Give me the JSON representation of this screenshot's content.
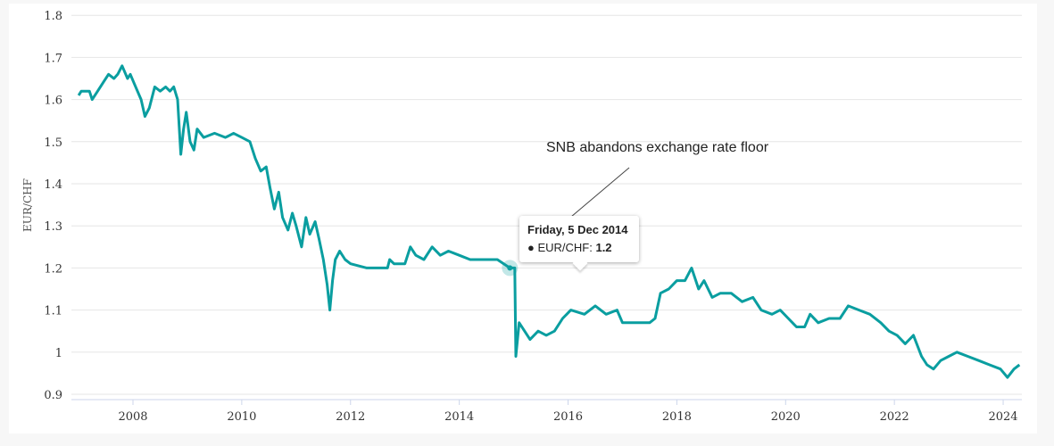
{
  "chart_data": {
    "type": "line",
    "title": "",
    "xlabel": "",
    "ylabel": "EUR/CHF",
    "xlim": [
      2006.85,
      2024.35
    ],
    "ylim": [
      0.9,
      1.8
    ],
    "xticks": [
      "2008",
      "2010",
      "2012",
      "2014",
      "2016",
      "2018",
      "2020",
      "2022",
      "2024"
    ],
    "yticks": [
      "0.9",
      "1",
      "1.1",
      "1.2",
      "1.3",
      "1.4",
      "1.5",
      "1.6",
      "1.7",
      "1.8"
    ],
    "grid": true,
    "color": "#0a9ea0",
    "series": [
      {
        "name": "EUR/CHF",
        "points": [
          [
            2007.0,
            1.61
          ],
          [
            2007.05,
            1.62
          ],
          [
            2007.2,
            1.62
          ],
          [
            2007.25,
            1.6
          ],
          [
            2007.35,
            1.62
          ],
          [
            2007.45,
            1.64
          ],
          [
            2007.55,
            1.66
          ],
          [
            2007.65,
            1.65
          ],
          [
            2007.72,
            1.66
          ],
          [
            2007.8,
            1.68
          ],
          [
            2007.9,
            1.65
          ],
          [
            2007.95,
            1.66
          ],
          [
            2008.05,
            1.63
          ],
          [
            2008.15,
            1.6
          ],
          [
            2008.22,
            1.56
          ],
          [
            2008.3,
            1.58
          ],
          [
            2008.4,
            1.63
          ],
          [
            2008.5,
            1.62
          ],
          [
            2008.6,
            1.63
          ],
          [
            2008.68,
            1.62
          ],
          [
            2008.75,
            1.63
          ],
          [
            2008.82,
            1.6
          ],
          [
            2008.88,
            1.47
          ],
          [
            2008.93,
            1.53
          ],
          [
            2008.98,
            1.57
          ],
          [
            2009.05,
            1.5
          ],
          [
            2009.12,
            1.48
          ],
          [
            2009.18,
            1.53
          ],
          [
            2009.3,
            1.51
          ],
          [
            2009.5,
            1.52
          ],
          [
            2009.7,
            1.51
          ],
          [
            2009.85,
            1.52
          ],
          [
            2010.0,
            1.51
          ],
          [
            2010.15,
            1.5
          ],
          [
            2010.25,
            1.46
          ],
          [
            2010.35,
            1.43
          ],
          [
            2010.45,
            1.44
          ],
          [
            2010.52,
            1.39
          ],
          [
            2010.6,
            1.34
          ],
          [
            2010.68,
            1.38
          ],
          [
            2010.75,
            1.32
          ],
          [
            2010.85,
            1.29
          ],
          [
            2010.93,
            1.33
          ],
          [
            2011.0,
            1.3
          ],
          [
            2011.1,
            1.25
          ],
          [
            2011.18,
            1.32
          ],
          [
            2011.25,
            1.28
          ],
          [
            2011.35,
            1.31
          ],
          [
            2011.42,
            1.27
          ],
          [
            2011.5,
            1.22
          ],
          [
            2011.57,
            1.16
          ],
          [
            2011.62,
            1.1
          ],
          [
            2011.67,
            1.17
          ],
          [
            2011.72,
            1.22
          ],
          [
            2011.8,
            1.24
          ],
          [
            2011.9,
            1.22
          ],
          [
            2012.0,
            1.21
          ],
          [
            2012.3,
            1.2
          ],
          [
            2012.68,
            1.2
          ],
          [
            2012.72,
            1.22
          ],
          [
            2012.8,
            1.21
          ],
          [
            2013.0,
            1.21
          ],
          [
            2013.1,
            1.25
          ],
          [
            2013.2,
            1.23
          ],
          [
            2013.35,
            1.22
          ],
          [
            2013.5,
            1.25
          ],
          [
            2013.65,
            1.23
          ],
          [
            2013.8,
            1.24
          ],
          [
            2014.0,
            1.23
          ],
          [
            2014.2,
            1.22
          ],
          [
            2014.5,
            1.22
          ],
          [
            2014.7,
            1.22
          ],
          [
            2014.93,
            1.2
          ],
          [
            2015.02,
            1.2
          ],
          [
            2015.04,
            0.99
          ],
          [
            2015.1,
            1.07
          ],
          [
            2015.2,
            1.05
          ],
          [
            2015.3,
            1.03
          ],
          [
            2015.45,
            1.05
          ],
          [
            2015.6,
            1.04
          ],
          [
            2015.75,
            1.05
          ],
          [
            2015.9,
            1.08
          ],
          [
            2016.05,
            1.1
          ],
          [
            2016.3,
            1.09
          ],
          [
            2016.5,
            1.11
          ],
          [
            2016.7,
            1.09
          ],
          [
            2016.9,
            1.1
          ],
          [
            2017.0,
            1.07
          ],
          [
            2017.3,
            1.07
          ],
          [
            2017.5,
            1.07
          ],
          [
            2017.6,
            1.08
          ],
          [
            2017.7,
            1.14
          ],
          [
            2017.85,
            1.15
          ],
          [
            2018.0,
            1.17
          ],
          [
            2018.15,
            1.17
          ],
          [
            2018.27,
            1.2
          ],
          [
            2018.4,
            1.15
          ],
          [
            2018.5,
            1.17
          ],
          [
            2018.65,
            1.13
          ],
          [
            2018.8,
            1.14
          ],
          [
            2019.0,
            1.14
          ],
          [
            2019.2,
            1.12
          ],
          [
            2019.4,
            1.13
          ],
          [
            2019.55,
            1.1
          ],
          [
            2019.75,
            1.09
          ],
          [
            2019.9,
            1.1
          ],
          [
            2020.05,
            1.08
          ],
          [
            2020.2,
            1.06
          ],
          [
            2020.35,
            1.06
          ],
          [
            2020.45,
            1.09
          ],
          [
            2020.6,
            1.07
          ],
          [
            2020.8,
            1.08
          ],
          [
            2021.0,
            1.08
          ],
          [
            2021.15,
            1.11
          ],
          [
            2021.35,
            1.1
          ],
          [
            2021.55,
            1.09
          ],
          [
            2021.75,
            1.07
          ],
          [
            2021.9,
            1.05
          ],
          [
            2022.05,
            1.04
          ],
          [
            2022.2,
            1.02
          ],
          [
            2022.35,
            1.04
          ],
          [
            2022.5,
            0.99
          ],
          [
            2022.6,
            0.97
          ],
          [
            2022.72,
            0.96
          ],
          [
            2022.85,
            0.98
          ],
          [
            2023.0,
            0.99
          ],
          [
            2023.15,
            1.0
          ],
          [
            2023.35,
            0.99
          ],
          [
            2023.55,
            0.98
          ],
          [
            2023.75,
            0.97
          ],
          [
            2023.95,
            0.96
          ],
          [
            2024.08,
            0.94
          ],
          [
            2024.2,
            0.96
          ],
          [
            2024.3,
            0.97
          ]
        ]
      }
    ],
    "annotation": {
      "text": "SNB abandons exchange rate floor",
      "x": 2014.93,
      "y": 1.2
    },
    "tooltip": {
      "date": "Friday, 5 Dec 2014",
      "series_label": "EUR/CHF: ",
      "value": "1.2"
    }
  }
}
